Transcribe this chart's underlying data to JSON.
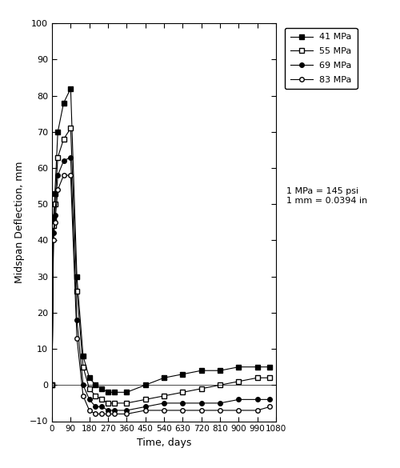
{
  "title": "",
  "xlabel": "Time, days",
  "ylabel": "Midspan Deflection, mm",
  "xlim": [
    0,
    1080
  ],
  "ylim": [
    -10,
    100
  ],
  "xticks": [
    0,
    90,
    180,
    270,
    360,
    450,
    540,
    630,
    720,
    810,
    900,
    990,
    1080
  ],
  "yticks": [
    -10,
    0,
    10,
    20,
    30,
    40,
    50,
    60,
    70,
    80,
    90,
    100
  ],
  "note_line1": "1 MPa = 145 psi",
  "note_line2": "1 mm = 0.0394 in",
  "series": [
    {
      "label": "41 MPa",
      "marker": "s",
      "fillstyle": "full",
      "color": "#000000",
      "points": [
        [
          0,
          0
        ],
        [
          7,
          46
        ],
        [
          14,
          53
        ],
        [
          28,
          70
        ],
        [
          56,
          78
        ],
        [
          90,
          82
        ],
        [
          120,
          30
        ],
        [
          150,
          8
        ],
        [
          180,
          2
        ],
        [
          210,
          0
        ],
        [
          240,
          -1
        ],
        [
          270,
          -2
        ],
        [
          300,
          -2
        ],
        [
          360,
          -2
        ],
        [
          450,
          0
        ],
        [
          540,
          2
        ],
        [
          630,
          3
        ],
        [
          720,
          4
        ],
        [
          810,
          4
        ],
        [
          900,
          5
        ],
        [
          990,
          5
        ],
        [
          1050,
          5
        ]
      ]
    },
    {
      "label": "55 MPa",
      "marker": "s",
      "fillstyle": "none",
      "color": "#000000",
      "points": [
        [
          0,
          0
        ],
        [
          7,
          44
        ],
        [
          14,
          50
        ],
        [
          28,
          63
        ],
        [
          56,
          68
        ],
        [
          90,
          71
        ],
        [
          120,
          26
        ],
        [
          150,
          5
        ],
        [
          180,
          -1
        ],
        [
          210,
          -3
        ],
        [
          240,
          -4
        ],
        [
          270,
          -5
        ],
        [
          300,
          -5
        ],
        [
          360,
          -5
        ],
        [
          450,
          -4
        ],
        [
          540,
          -3
        ],
        [
          630,
          -2
        ],
        [
          720,
          -1
        ],
        [
          810,
          0
        ],
        [
          900,
          1
        ],
        [
          990,
          2
        ],
        [
          1050,
          2
        ]
      ]
    },
    {
      "label": "69 MPa",
      "marker": "o",
      "fillstyle": "full",
      "color": "#000000",
      "points": [
        [
          0,
          0
        ],
        [
          7,
          42
        ],
        [
          14,
          47
        ],
        [
          28,
          58
        ],
        [
          56,
          62
        ],
        [
          90,
          63
        ],
        [
          120,
          18
        ],
        [
          150,
          0
        ],
        [
          180,
          -4
        ],
        [
          210,
          -6
        ],
        [
          240,
          -6
        ],
        [
          270,
          -7
        ],
        [
          300,
          -7
        ],
        [
          360,
          -7
        ],
        [
          450,
          -6
        ],
        [
          540,
          -5
        ],
        [
          630,
          -5
        ],
        [
          720,
          -5
        ],
        [
          810,
          -5
        ],
        [
          900,
          -4
        ],
        [
          990,
          -4
        ],
        [
          1050,
          -4
        ]
      ]
    },
    {
      "label": "83 MPa",
      "marker": "o",
      "fillstyle": "none",
      "color": "#000000",
      "points": [
        [
          0,
          0
        ],
        [
          7,
          40
        ],
        [
          14,
          45
        ],
        [
          28,
          54
        ],
        [
          56,
          58
        ],
        [
          90,
          58
        ],
        [
          120,
          13
        ],
        [
          150,
          -3
        ],
        [
          180,
          -7
        ],
        [
          210,
          -8
        ],
        [
          240,
          -8
        ],
        [
          270,
          -8
        ],
        [
          300,
          -8
        ],
        [
          360,
          -8
        ],
        [
          450,
          -7
        ],
        [
          540,
          -7
        ],
        [
          630,
          -7
        ],
        [
          720,
          -7
        ],
        [
          810,
          -7
        ],
        [
          900,
          -7
        ],
        [
          990,
          -7
        ],
        [
          1050,
          -6
        ]
      ]
    }
  ]
}
